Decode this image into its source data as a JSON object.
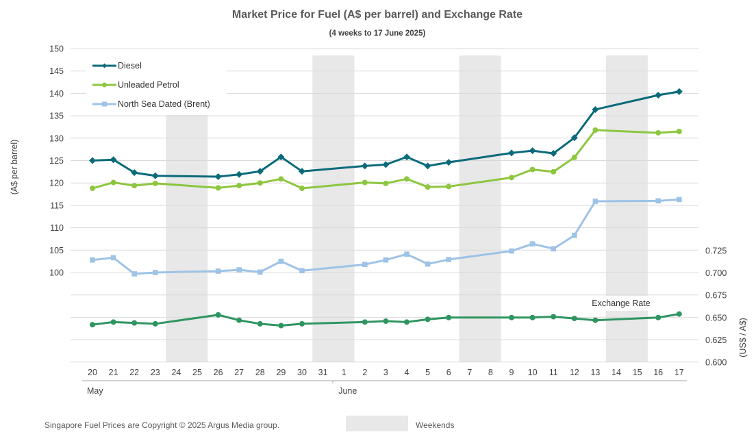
{
  "chart_data": {
    "type": "line",
    "title": "Market Price for Fuel (A$ per barrel) and Exchange Rate",
    "subtitle": "(4 weeks to 17 June 2025)",
    "ylabel": "(A$ per barrel)",
    "y2label": "(US$ / A$)",
    "ylim": [
      100,
      150
    ],
    "yticks": [
      100,
      105,
      110,
      115,
      120,
      125,
      130,
      135,
      140,
      145,
      150
    ],
    "y2lim": [
      0.6,
      0.725
    ],
    "y2ticks": [
      "0.600",
      "0.625",
      "0.650",
      "0.675",
      "0.700",
      "0.725"
    ],
    "categories": [
      "20",
      "21",
      "22",
      "23",
      "24",
      "25",
      "26",
      "27",
      "28",
      "29",
      "30",
      "31",
      "1",
      "2",
      "3",
      "4",
      "5",
      "6",
      "7",
      "8",
      "9",
      "10",
      "11",
      "12",
      "13",
      "14",
      "15",
      "16",
      "17"
    ],
    "month_labels": [
      {
        "label": "May",
        "start_index": 0
      },
      {
        "label": "June",
        "start_index": 12
      }
    ],
    "weekend_bands": [
      [
        4,
        5
      ],
      [
        11,
        12
      ],
      [
        18,
        19
      ],
      [
        25,
        26
      ]
    ],
    "grid": true,
    "legend_placement": "top-left",
    "series": [
      {
        "name": "Diesel",
        "color": "#0a6a7a",
        "marker": "diamond",
        "axis": "left",
        "values": [
          125.0,
          125.2,
          122.3,
          121.6,
          null,
          null,
          121.4,
          121.9,
          122.6,
          125.8,
          122.6,
          null,
          null,
          123.8,
          124.1,
          125.8,
          123.8,
          124.6,
          null,
          null,
          126.7,
          127.2,
          126.6,
          130.1,
          136.4,
          null,
          null,
          139.6,
          140.4
        ]
      },
      {
        "name": "Unleaded Petrol",
        "color": "#8dc63f",
        "marker": "circle",
        "axis": "left",
        "values": [
          118.8,
          120.1,
          119.4,
          119.9,
          null,
          null,
          118.9,
          119.4,
          120.0,
          120.9,
          118.8,
          null,
          null,
          120.1,
          119.9,
          120.9,
          119.1,
          119.2,
          null,
          null,
          121.2,
          123.0,
          122.5,
          125.7,
          131.8,
          null,
          null,
          131.2,
          131.5
        ]
      },
      {
        "name": "North Sea Dated (Brent)",
        "color": "#9dc3e6",
        "marker": "square",
        "axis": "left",
        "values": [
          102.8,
          103.3,
          99.7,
          100.0,
          null,
          null,
          100.3,
          100.6,
          100.1,
          102.5,
          100.4,
          null,
          null,
          101.8,
          102.8,
          104.1,
          101.9,
          102.9,
          null,
          null,
          104.8,
          106.4,
          105.3,
          108.3,
          115.9,
          null,
          null,
          116.0,
          116.3
        ]
      },
      {
        "name": "Exchange Rate",
        "color": "#2e9560",
        "marker": "circle",
        "axis": "right",
        "values": [
          0.642,
          0.645,
          0.644,
          0.643,
          null,
          null,
          0.653,
          0.647,
          0.643,
          0.641,
          0.643,
          null,
          null,
          0.645,
          0.646,
          0.645,
          0.648,
          0.65,
          null,
          null,
          0.65,
          0.65,
          0.651,
          0.649,
          0.647,
          null,
          null,
          0.65,
          0.654
        ]
      }
    ],
    "series_label": "Exchange Rate",
    "footer_copyright": "Singapore Fuel Prices are Copyright © 2025 Argus Media group.",
    "weekend_legend_label": "Weekends",
    "weekend_color": "#e8e8e8"
  }
}
